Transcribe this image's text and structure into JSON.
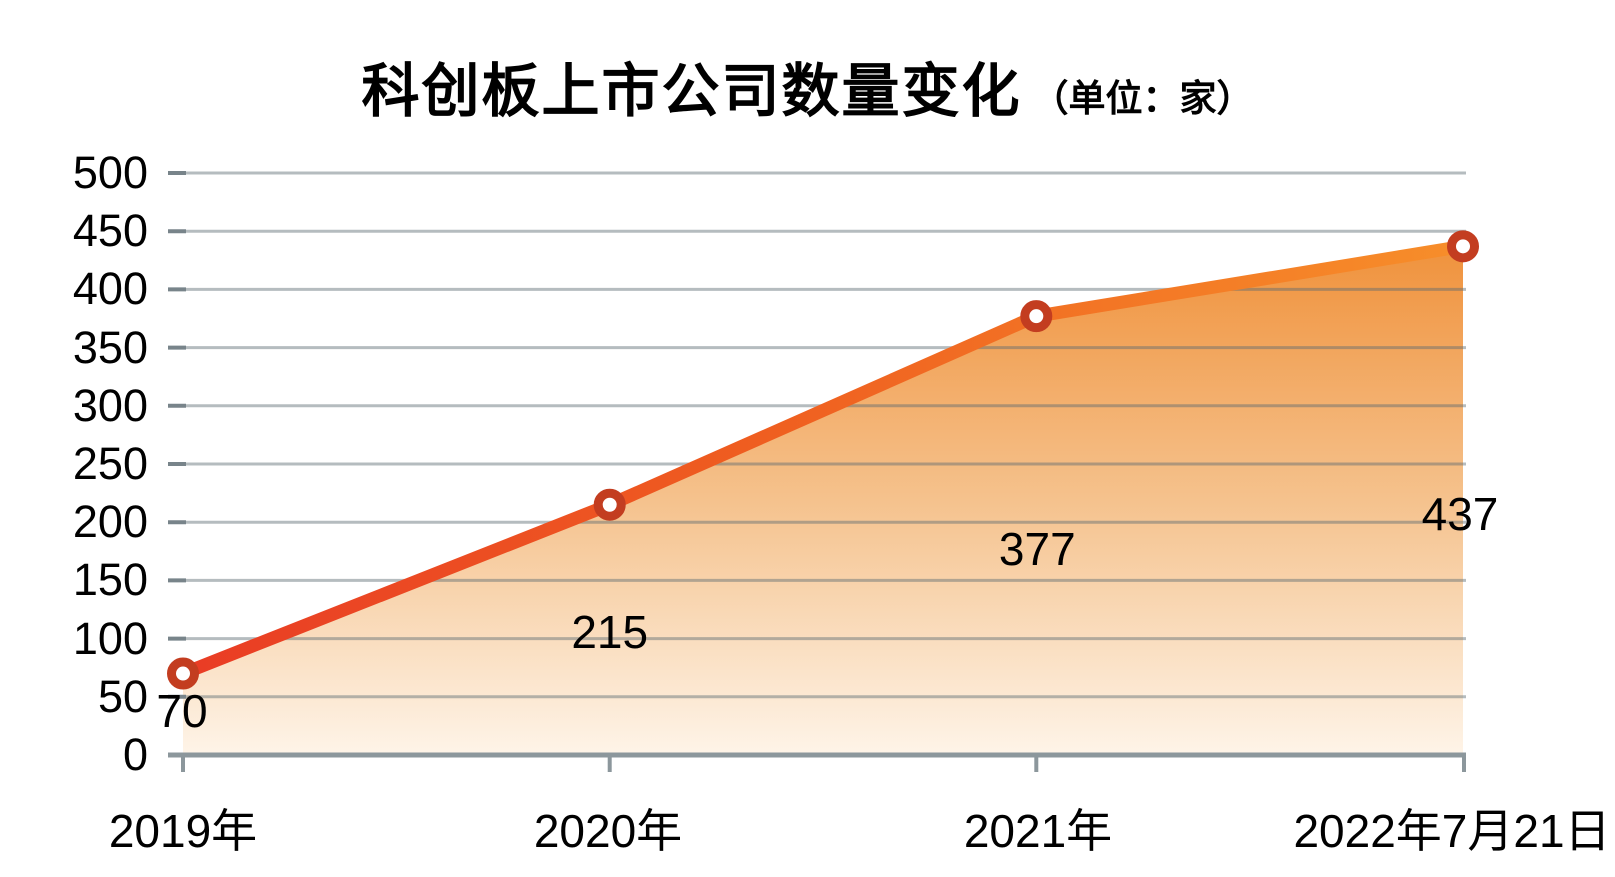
{
  "header": {
    "title": "科创板上市公司数量变化",
    "unit": "（单位：家）"
  },
  "chart_data": {
    "type": "area",
    "title": "科创板上市公司数量变化",
    "unit_label": "（单位：家）",
    "categories": [
      "2019年",
      "2020年",
      "2021年",
      "2022年7月21日"
    ],
    "values": [
      70,
      215,
      377,
      437
    ],
    "data_labels": [
      "70",
      "215",
      "377",
      "437"
    ],
    "ylim": [
      0,
      500
    ],
    "yticks": [
      0,
      50,
      100,
      150,
      200,
      250,
      300,
      350,
      400,
      450,
      500
    ],
    "grid": "horizontal",
    "legend": "none",
    "marker": "donut",
    "colors": {
      "line_gradient": [
        "#E93C25",
        "#EF5E20",
        "#F78E2A"
      ],
      "area_gradient": [
        "#F0923C",
        "#F5C28D",
        "#FEF4E8"
      ],
      "marker_ring": "#C33D20",
      "marker_center": "#FFFFFF",
      "gridline": "#AAB3B7",
      "gridline_tip": "#78848A",
      "axis": "#8C979C",
      "text": "#000000"
    }
  }
}
